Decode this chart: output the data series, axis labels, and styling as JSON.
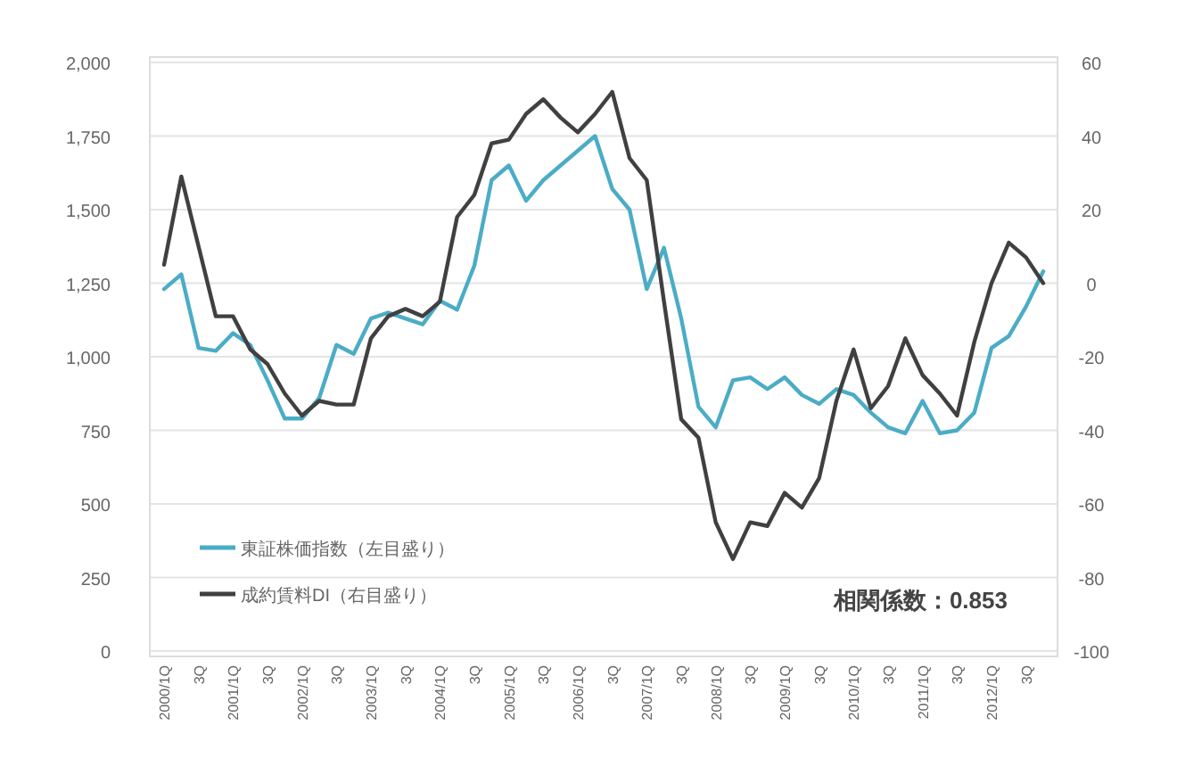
{
  "chart_data": {
    "type": "line",
    "categories": [
      "2000/1Q",
      null,
      "3Q",
      null,
      "2001/1Q",
      null,
      "3Q",
      null,
      "2002/1Q",
      null,
      "3Q",
      null,
      "2003/1Q",
      null,
      "3Q",
      null,
      "2004/1Q",
      null,
      "3Q",
      null,
      "2005/1Q",
      null,
      "3Q",
      null,
      "2006/1Q",
      null,
      "3Q",
      null,
      "2007/1Q",
      null,
      "3Q",
      null,
      "2008/1Q",
      null,
      "3Q",
      null,
      "2009/1Q",
      null,
      "3Q",
      null,
      "2010/1Q",
      null,
      "3Q",
      null,
      "2011/1Q",
      null,
      "3Q",
      null,
      "2012/1Q",
      null,
      "3Q",
      null
    ],
    "series": [
      {
        "name": "東証株価指数（左目盛り）",
        "color": "#4bacc6",
        "values": [
          1230,
          1280,
          1030,
          1020,
          1080,
          1040,
          920,
          790,
          790,
          860,
          1040,
          1010,
          1130,
          1150,
          1130,
          1110,
          1190,
          1160,
          1310,
          1600,
          1650,
          1530,
          1600,
          1650,
          1700,
          1750,
          1570,
          1500,
          1230,
          1370,
          1130,
          830,
          760,
          920,
          930,
          890,
          930,
          870,
          840,
          890,
          870,
          810,
          760,
          740,
          850,
          740,
          750,
          810,
          1030,
          1070,
          1170,
          1290
        ]
      },
      {
        "name": "成約賃料DI（右目盛り）",
        "color": "#404040",
        "axis": "y2",
        "values": [
          5,
          29,
          10,
          -9,
          -9,
          -18,
          -22,
          -30,
          -36,
          -32,
          -33,
          -33,
          -15,
          -9,
          -7,
          -9,
          -5,
          18,
          24,
          38,
          39,
          46,
          50,
          45,
          41,
          46,
          52,
          34,
          28,
          -5,
          -37,
          -42,
          -65,
          -75,
          -65,
          -66,
          -57,
          -61,
          -53,
          -32,
          -18,
          -34,
          -28,
          -15,
          -25,
          -30,
          -36,
          -16,
          0,
          11,
          7,
          0
        ]
      }
    ],
    "ylim": [
      0,
      2000
    ],
    "yticks": [
      0,
      {
        "value": 250,
        "label": "250"
      },
      {
        "value": 500,
        "label": "500"
      },
      {
        "value": 750,
        "label": "750"
      },
      {
        "value": 1000,
        "label": "1,000"
      },
      {
        "value": 1250,
        "label": "1,250"
      },
      {
        "value": 1500,
        "label": "1,500"
      },
      {
        "value": 1750,
        "label": "1,750"
      },
      {
        "value": 2000,
        "label": "2,000"
      }
    ],
    "y2lim": [
      -100,
      60
    ],
    "y2ticks": [
      -100,
      -80,
      -60,
      -40,
      -20,
      0,
      20,
      40,
      60
    ],
    "grid": "y",
    "legend": "bottom left",
    "line_style": "solid",
    "marker": "none",
    "annotations": [
      "相関係数：0.853"
    ]
  }
}
